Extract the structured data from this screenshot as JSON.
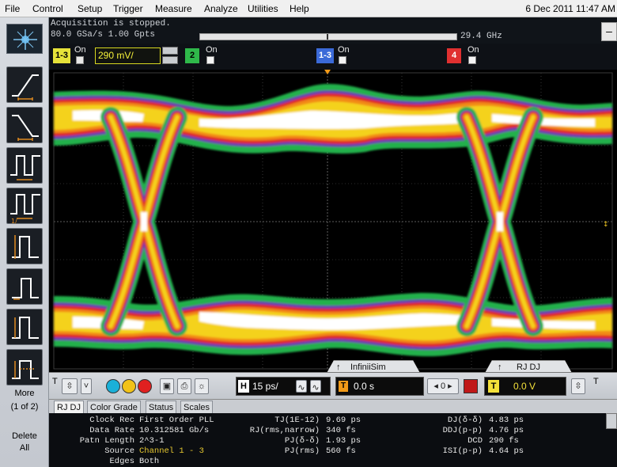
{
  "menu": {
    "items": [
      "File",
      "Control",
      "Setup",
      "Trigger",
      "Measure",
      "Analyze",
      "Utilities",
      "Help"
    ],
    "datetime": "6 Dec 2011 11:47 AM"
  },
  "status": {
    "acquisition": "Acquisition is stopped.",
    "sample_rate": "80.0 GSa/s   1.00 Gpts",
    "bandwidth": "29.4 GHz"
  },
  "channels": {
    "ch1": {
      "badge": "1-3",
      "on_label": "On",
      "scale": "290 mV/",
      "color": "#e6e23a"
    },
    "ch2": {
      "badge": "2",
      "on_label": "On",
      "color": "#2fb84a"
    },
    "ch3": {
      "badge": "1-3",
      "on_label": "On",
      "color": "#3b6ad8"
    },
    "ch4": {
      "badge": "4",
      "on_label": "On",
      "color": "#e03030"
    }
  },
  "toolbar": {
    "more_line1": "More",
    "more_line2": "(1 of 2)",
    "delete_line1": "Delete",
    "delete_line2": "All"
  },
  "controls": {
    "horizontal_scale": "15 ps/",
    "horizontal_position": "0.0 s",
    "trigger_level": "0.0 V",
    "trigger_step": "0",
    "infinisim_tab": "InfiniiSim",
    "rjdj_tab": "RJ DJ"
  },
  "result_tabs": [
    "RJ DJ",
    "Color Grade",
    "Status",
    "Scales"
  ],
  "results": {
    "left": [
      {
        "label": "Clock Rec",
        "value": "First Order PLL"
      },
      {
        "label": "Data Rate",
        "value": "10.312581 Gb/s"
      },
      {
        "label": "Patn Length",
        "value": "2^3-1"
      },
      {
        "label": "Source",
        "value": "Channel 1 - 3"
      },
      {
        "label": "Edges",
        "value": "Both"
      }
    ],
    "middle": [
      {
        "label": "TJ(1E-12)",
        "value": "9.69 ps"
      },
      {
        "label": "RJ(rms,narrow)",
        "value": "340 fs"
      },
      {
        "label": "PJ(δ-δ)",
        "value": "1.93 ps"
      },
      {
        "label": "PJ(rms)",
        "value": "560 fs"
      }
    ],
    "right": [
      {
        "label": "DJ(δ-δ)",
        "value": "4.83 ps"
      },
      {
        "label": "DDJ(p-p)",
        "value": "4.76 ps"
      },
      {
        "label": "DCD",
        "value": "290 fs"
      },
      {
        "label": "ISI(p-p)",
        "value": "4.64 ps"
      }
    ]
  },
  "colors": {
    "eye_green": "#22b14c",
    "eye_blue": "#6a3fb0",
    "eye_red": "#e02828",
    "eye_orange": "#f28a18",
    "eye_yellow": "#f4d21a",
    "eye_white": "#ffffff"
  }
}
